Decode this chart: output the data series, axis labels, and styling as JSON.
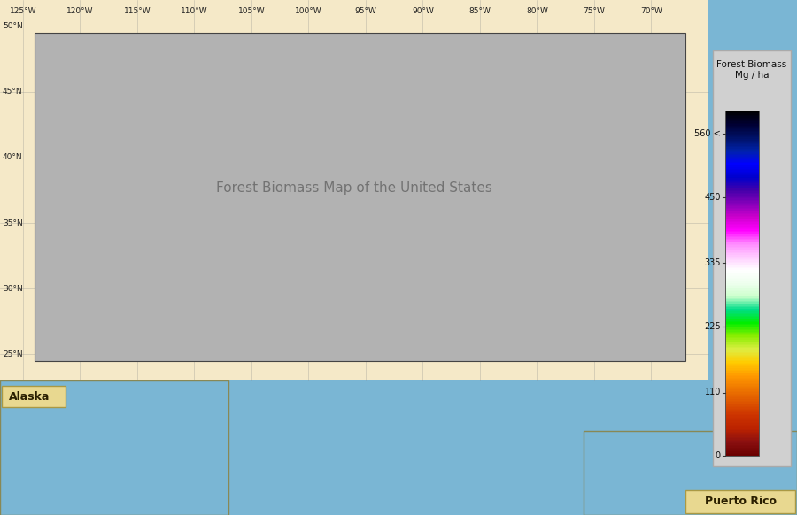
{
  "fig_width": 9.0,
  "fig_height": 5.82,
  "dpi": 100,
  "background_ocean": "#7ab6d4",
  "background_land_outside": "#f5e9c8",
  "us_nonforest": "#b2b2b2",
  "colorbar_title_line1": "Forest Biomass",
  "colorbar_title_line2": "Mg / ha",
  "colorbar_tick_labels": [
    "0",
    "110",
    "225",
    "335",
    "450",
    "560 <"
  ],
  "colorbar_tick_values": [
    0,
    110,
    225,
    335,
    450,
    560
  ],
  "alaska_label": "Alaska",
  "puerto_rico_label": "Puerto Rico",
  "label_box_facecolor": "#e8d890",
  "label_box_edgecolor": "#aa9944",
  "colorbar_bg": "#d0d0d0",
  "colorbar_colors_low_to_high": [
    "#6b0000",
    "#8b1010",
    "#bb2200",
    "#cc3300",
    "#dd5500",
    "#ee7700",
    "#ff9900",
    "#ffcc00",
    "#ddee44",
    "#88ee00",
    "#00ee00",
    "#00dd88",
    "#ccffcc",
    "#eeffee",
    "#ffffff",
    "#ffccff",
    "#ff88ff",
    "#ff00ff",
    "#cc00cc",
    "#8800bb",
    "#4400aa",
    "#0000cc",
    "#0000ff",
    "#0022aa",
    "#001166",
    "#000033",
    "#000000"
  ],
  "grid_color": "#888888",
  "grid_alpha": 0.5,
  "state_border_color": "#555555",
  "country_border_color": "#222222",
  "lon_ticks": [
    -125,
    -120,
    -115,
    -110,
    -105,
    -100,
    -95,
    -90,
    -85,
    -80,
    -75,
    -70
  ],
  "lat_ticks": [
    25,
    30,
    35,
    40,
    45,
    50
  ],
  "lon_tick_labels": [
    "125°W",
    "120°W",
    "115°W",
    "110°W",
    "105°W",
    "100°W",
    "95°W",
    "90°W",
    "85°W",
    "80°W",
    "75°W",
    "70°W"
  ],
  "lat_tick_labels": [
    "25°N",
    "30°N",
    "35°N",
    "40°N",
    "45°N",
    "50°N"
  ]
}
